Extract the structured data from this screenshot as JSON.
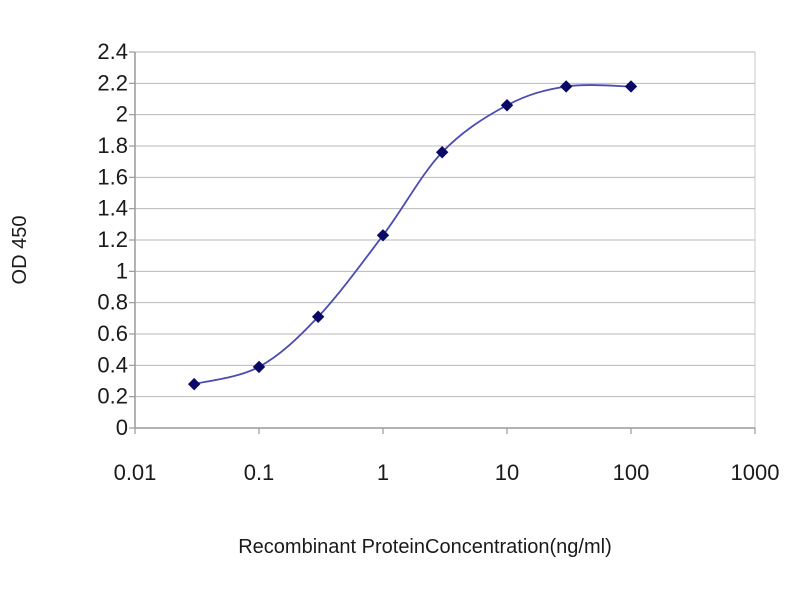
{
  "chart_data": {
    "type": "line",
    "title": "",
    "xlabel": "Recombinant ProteinConcentration(ng/ml)",
    "ylabel": "OD 450",
    "x_scale": "log",
    "xlim": [
      0.01,
      1000
    ],
    "ylim": [
      0,
      2.4
    ],
    "grid": {
      "horizontal": true,
      "vertical": false
    },
    "x_tick_labels": [
      "0.01",
      "0.1",
      "1",
      "10",
      "100",
      "1000"
    ],
    "x_tick_values": [
      0.01,
      0.1,
      1,
      10,
      100,
      1000
    ],
    "y_tick_labels": [
      "0",
      "0.2",
      "0.4",
      "0.6",
      "0.8",
      "1",
      "1.2",
      "1.4",
      "1.6",
      "1.8",
      "2",
      "2.2",
      "2.4"
    ],
    "y_tick_values": [
      0,
      0.2,
      0.4,
      0.6,
      0.8,
      1,
      1.2,
      1.4,
      1.6,
      1.8,
      2,
      2.2,
      2.4
    ],
    "series": [
      {
        "x": [
          0.03,
          0.1,
          0.3,
          1,
          3,
          10,
          30,
          100
        ],
        "y": [
          0.28,
          0.39,
          0.71,
          1.23,
          1.76,
          2.06,
          2.18,
          2.18
        ]
      }
    ],
    "colors": {
      "line": "#4b4bb5",
      "marker": "#0a0a66",
      "grid": "#b8b8b8",
      "axis": "#9a9a9a",
      "plot_border": "#c8c8c8"
    }
  }
}
